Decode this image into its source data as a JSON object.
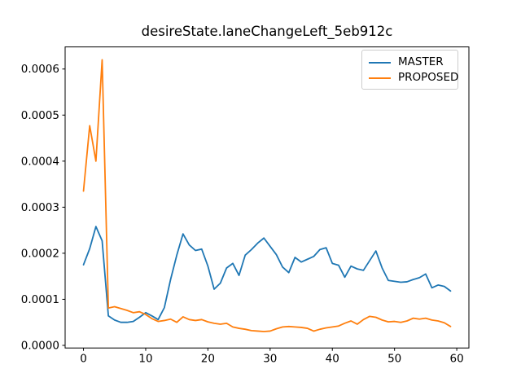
{
  "figure": {
    "background": "#ffffff"
  },
  "chart_data": {
    "type": "line",
    "title": "desireState.laneChangeLeft_5eb912c",
    "xlabel": "",
    "ylabel": "",
    "grid": false,
    "legend_position": "upper right",
    "axis_color": "#000000",
    "xlim": [
      -2.95,
      61.95
    ],
    "ylim": [
      -5.7e-06,
      0.000648
    ],
    "x_ticks": [
      0,
      10,
      20,
      30,
      40,
      50,
      60
    ],
    "y_tick_labels": [
      "0.0000",
      "0.0001",
      "0.0002",
      "0.0003",
      "0.0004",
      "0.0005",
      "0.0006"
    ],
    "x": [
      0,
      1,
      2,
      3,
      4,
      5,
      6,
      7,
      8,
      9,
      10,
      11,
      12,
      13,
      14,
      15,
      16,
      17,
      18,
      19,
      20,
      21,
      22,
      23,
      24,
      25,
      26,
      27,
      28,
      29,
      30,
      31,
      32,
      33,
      34,
      35,
      36,
      37,
      38,
      39,
      40,
      41,
      42,
      43,
      44,
      45,
      46,
      47,
      48,
      49,
      50,
      51,
      52,
      53,
      54,
      55,
      56,
      57,
      58,
      59
    ],
    "series": [
      {
        "name": "MASTER",
        "color": "#1f77b4",
        "values": [
          0.000175,
          0.00021,
          0.000258,
          0.000227,
          6.4e-05,
          5.5e-05,
          5e-05,
          5e-05,
          5.2e-05,
          6.1e-05,
          7.1e-05,
          6.4e-05,
          5.6e-05,
          8.2e-05,
          0.000143,
          0.000196,
          0.000242,
          0.000218,
          0.000206,
          0.000209,
          0.000172,
          0.000122,
          0.000135,
          0.000168,
          0.000178,
          0.000152,
          0.000196,
          0.000208,
          0.000222,
          0.000233,
          0.000215,
          0.000197,
          0.00017,
          0.000158,
          0.000191,
          0.000181,
          0.000187,
          0.000193,
          0.000208,
          0.000212,
          0.000178,
          0.000174,
          0.000148,
          0.000172,
          0.000166,
          0.000163,
          0.000184,
          0.000205,
          0.000168,
          0.000141,
          0.000139,
          0.000137,
          0.000138,
          0.000143,
          0.000147,
          0.000155,
          0.000125,
          0.000131,
          0.000128,
          0.000118
        ]
      },
      {
        "name": "PROPOSED",
        "color": "#ff7f0e",
        "values": [
          0.000335,
          0.000477,
          0.0004,
          0.00062,
          8.1e-05,
          8.4e-05,
          8e-05,
          7.6e-05,
          7.1e-05,
          7.3e-05,
          6.7e-05,
          5.8e-05,
          5.2e-05,
          5.4e-05,
          5.7e-05,
          5e-05,
          6.2e-05,
          5.6e-05,
          5.4e-05,
          5.6e-05,
          5.1e-05,
          4.8e-05,
          4.6e-05,
          4.8e-05,
          4e-05,
          3.7e-05,
          3.5e-05,
          3.2e-05,
          3.1e-05,
          3e-05,
          3.1e-05,
          3.6e-05,
          4e-05,
          4.1e-05,
          4e-05,
          3.9e-05,
          3.7e-05,
          3.1e-05,
          3.5e-05,
          3.8e-05,
          4e-05,
          4.2e-05,
          4.8e-05,
          5.3e-05,
          4.6e-05,
          5.6e-05,
          6.3e-05,
          6.1e-05,
          5.5e-05,
          5.1e-05,
          5.2e-05,
          5e-05,
          5.3e-05,
          5.9e-05,
          5.7e-05,
          5.9e-05,
          5.5e-05,
          5.3e-05,
          4.9e-05,
          4.1e-05
        ]
      }
    ]
  }
}
